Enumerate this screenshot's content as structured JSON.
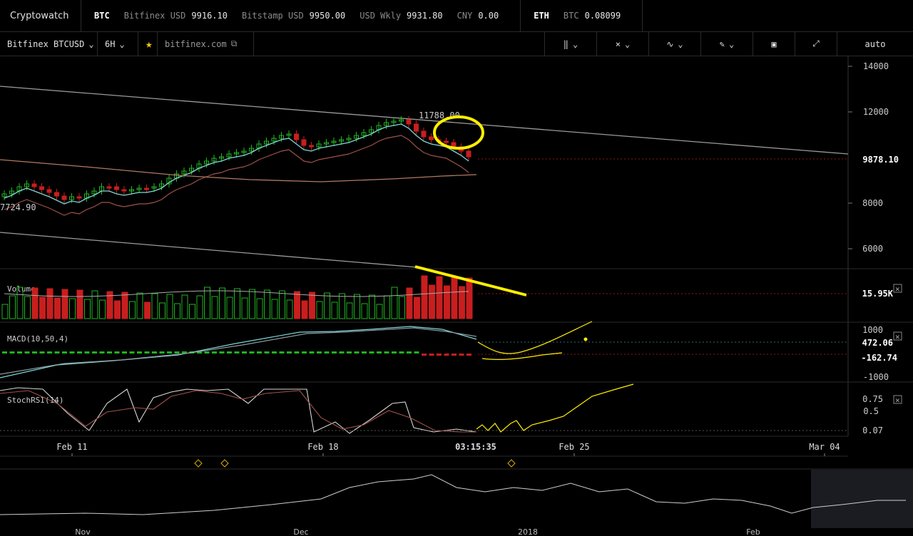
{
  "app": {
    "title": "Cryptowatch"
  },
  "markets": {
    "btc": {
      "symbol": "BTC",
      "bitfinex_label": "Bitfinex USD",
      "bitfinex_value": "9916.10",
      "bitstamp_label": "Bitstamp USD",
      "bitstamp_value": "9950.00",
      "wkly_label": "USD Wkly",
      "wkly_value": "9931.80",
      "cny_label": "CNY",
      "cny_value": "0.00"
    },
    "eth": {
      "symbol": "ETH",
      "btc_label": "BTC",
      "btc_value": "0.08099"
    }
  },
  "toolbar": {
    "market": "Bitfinex BTCUSD",
    "interval": "6H",
    "exchange_link": "bitfinex.com",
    "scale_mode": "auto"
  },
  "chart": {
    "price_axis": [
      "14000",
      "12000",
      "9878.10",
      "8000",
      "6000"
    ],
    "high_label": "11788.00",
    "low_label": "7724.90",
    "volume": {
      "title": "Volume",
      "current": "15.95K"
    },
    "macd": {
      "title": "MACD(10,50,4)",
      "axis": [
        "1000",
        "472.06",
        "-162.74",
        "-1000"
      ]
    },
    "stoch": {
      "title": "StochRSI(14)",
      "axis": [
        "0.75",
        "0.5",
        "0.07"
      ]
    },
    "dates": [
      "Feb 11",
      "Feb 18",
      "03:15:35",
      "Feb 25",
      "Mar 04"
    ],
    "navigator_dates": [
      "Nov",
      "Dec",
      "2018",
      "Feb"
    ],
    "colors": {
      "up": "#22b422",
      "down": "#c81e1e",
      "annotation": "#ffef00",
      "ma_fast": "#7fd6d6",
      "ma_slow": "#b07a60"
    }
  }
}
